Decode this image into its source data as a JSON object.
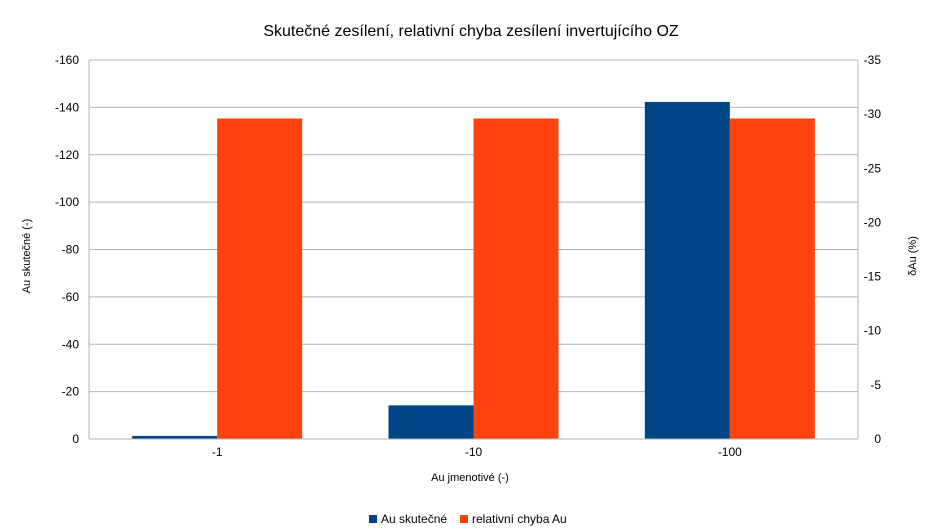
{
  "chart_data": {
    "type": "bar",
    "title": "Skutečné zesílení, relativní chyba zesílení invertujícího OZ",
    "xlabel": "Au jmenotivé (-)",
    "ylabel": "Au skutečné (-)",
    "y2label": "δAu (%)",
    "categories": [
      "-1",
      "-10",
      "-100"
    ],
    "ylim": [
      0,
      -160
    ],
    "y2lim": [
      0,
      -35
    ],
    "yticks": [
      "0",
      "-20",
      "-40",
      "-60",
      "-80",
      "-100",
      "-120",
      "-140",
      "-160"
    ],
    "y2ticks": [
      "0",
      "-5",
      "-10",
      "-15",
      "-20",
      "-25",
      "-30",
      "-35"
    ],
    "grid": true,
    "legend_position": "bottom",
    "series": [
      {
        "name": "Au skutečné",
        "axis": "left",
        "color": "#004586",
        "values": [
          -1.3,
          -14.2,
          -142.3
        ]
      },
      {
        "name": "relativní chyba Au",
        "axis": "right",
        "color": "#ff420e",
        "values": [
          -29.6,
          -29.6,
          -29.6
        ]
      }
    ]
  }
}
